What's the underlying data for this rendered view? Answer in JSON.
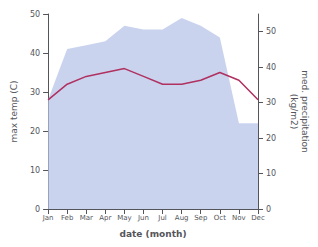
{
  "chart_data": {
    "type": "line",
    "xlabel": "date (month)",
    "ylabel": "max temp (C)",
    "y2label": "med. precipitation\n(kg/m2)",
    "categories": [
      "Jan",
      "Feb",
      "Mar",
      "Apr",
      "May",
      "Jun",
      "Jul",
      "Aug",
      "Sep",
      "Oct",
      "Nov",
      "Dec"
    ],
    "series": [
      {
        "type": "area",
        "color": "#b8c4e8",
        "values": [
          28,
          41,
          42,
          43,
          47,
          46,
          46,
          49,
          47,
          44,
          22,
          22
        ]
      },
      {
        "type": "line",
        "color": "#b03060",
        "values": [
          28,
          32,
          34,
          35,
          36,
          34,
          32,
          32,
          33,
          35,
          33,
          28
        ]
      }
    ],
    "ylim": [
      0,
      50
    ],
    "yticks": [
      0,
      10,
      20,
      30,
      40,
      50
    ],
    "y2lim": [
      0,
      55
    ],
    "y2ticks": [
      0,
      10,
      20,
      30,
      40,
      50
    ],
    "grid": false
  }
}
